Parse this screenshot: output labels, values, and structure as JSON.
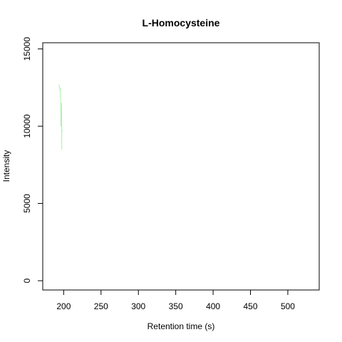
{
  "chart_data": {
    "type": "line",
    "title": "L-Homocysteine",
    "xlabel": "Retention time (s)",
    "ylabel": "Intensity",
    "xlim": [
      172,
      542
    ],
    "ylim": [
      -600,
      15400
    ],
    "x_ticks": [
      200,
      250,
      300,
      350,
      400,
      450,
      500
    ],
    "x_tick_labels": [
      "200",
      "250",
      "300",
      "350",
      "400",
      "450",
      "500"
    ],
    "y_ticks": [
      0,
      5000,
      10000,
      15000
    ],
    "y_tick_labels": [
      "0",
      "5000",
      "10000",
      "15000"
    ],
    "grid": false,
    "legend": "none",
    "series": [
      {
        "color": "#90ee90",
        "x": [
          193.5,
          194.5,
          195.5,
          196.5,
          197.0,
          197.6
        ],
        "y": [
          12700,
          12550,
          12400,
          10000,
          11500,
          8500
        ]
      },
      {
        "color": "#b8f5b8",
        "x": [
          194.0,
          195.2,
          196.2,
          197.2,
          198.0
        ],
        "y": [
          12600,
          12300,
          11000,
          10300,
          9600
        ]
      }
    ]
  }
}
